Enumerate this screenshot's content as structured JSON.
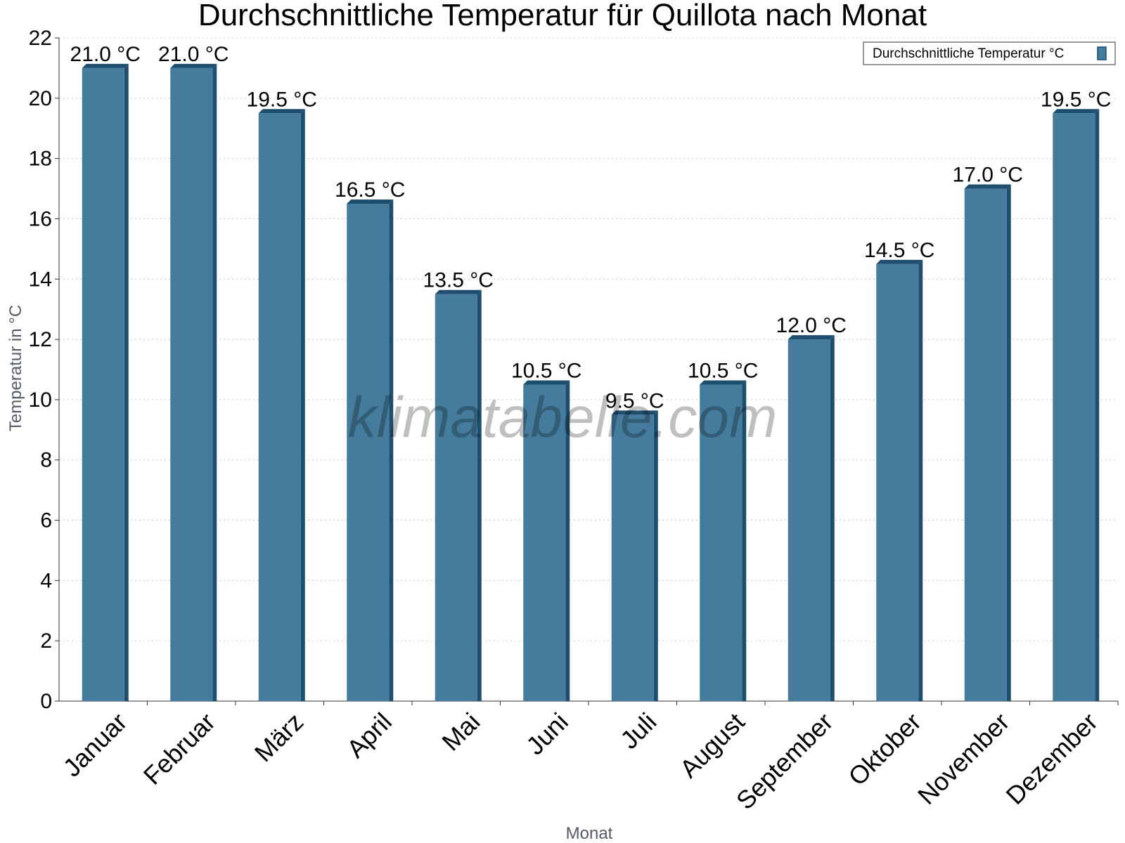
{
  "chart_data": {
    "type": "bar",
    "title": "Durchschnittliche Temperatur für Quillota nach Monat",
    "xlabel": "Monat",
    "ylabel": "Temperatur in °C",
    "categories": [
      "Januar",
      "Februar",
      "März",
      "April",
      "Mai",
      "Juni",
      "Juli",
      "August",
      "September",
      "Oktober",
      "November",
      "Dezember"
    ],
    "series": [
      {
        "name": "Durchschnittliche Temperatur °C",
        "values": [
          21.0,
          21.0,
          19.5,
          16.5,
          13.5,
          10.5,
          9.5,
          10.5,
          12.0,
          14.5,
          17.0,
          19.5
        ],
        "labels": [
          "21.0 °C",
          "21.0 °C",
          "19.5 °C",
          "16.5 °C",
          "13.5 °C",
          "10.5 °C",
          "9.5 °C",
          "10.5 °C",
          "12.0 °C",
          "14.5 °C",
          "17.0 °C",
          "19.5 °C"
        ],
        "color": "#457b9d",
        "edge_color": "#1d4e6e"
      }
    ],
    "ylim": [
      0,
      22
    ],
    "yticks": [
      "0",
      "2",
      "4",
      "6",
      "8",
      "10",
      "12",
      "14",
      "16",
      "18",
      "20",
      "22"
    ],
    "grid": true,
    "legend_position": "top-right",
    "watermark": "klimatabelle.com"
  }
}
